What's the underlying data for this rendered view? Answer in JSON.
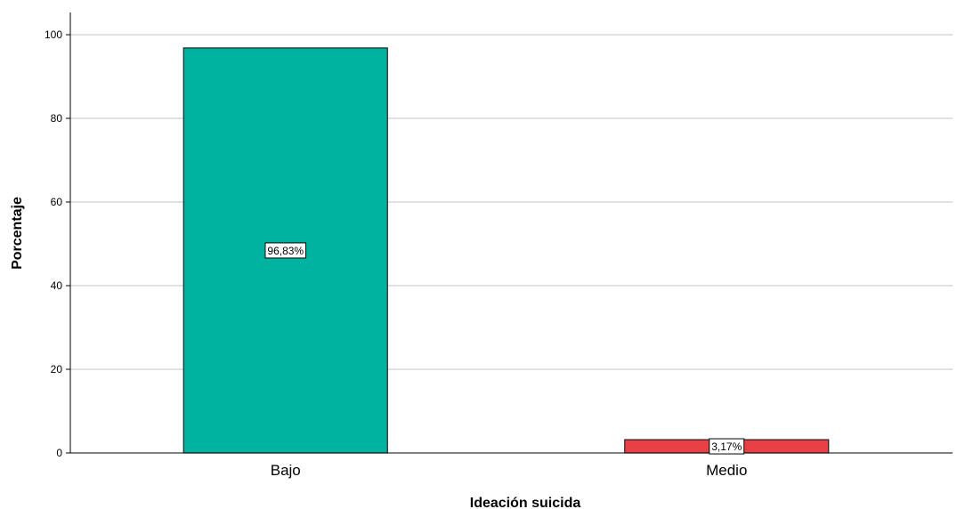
{
  "chart_data": {
    "type": "bar",
    "categories": [
      "Bajo",
      "Medio"
    ],
    "values": [
      96.83,
      3.17
    ],
    "data_labels": [
      "96,83%",
      "3,17%"
    ],
    "colors": [
      "#00b2a0",
      "#e84044"
    ],
    "xlabel": "Ideación suicida",
    "ylabel": "Porcentaje",
    "ylim": [
      0,
      100
    ],
    "yticks": [
      0,
      20,
      40,
      60,
      80,
      100
    ],
    "grid": true,
    "legend": "none"
  }
}
